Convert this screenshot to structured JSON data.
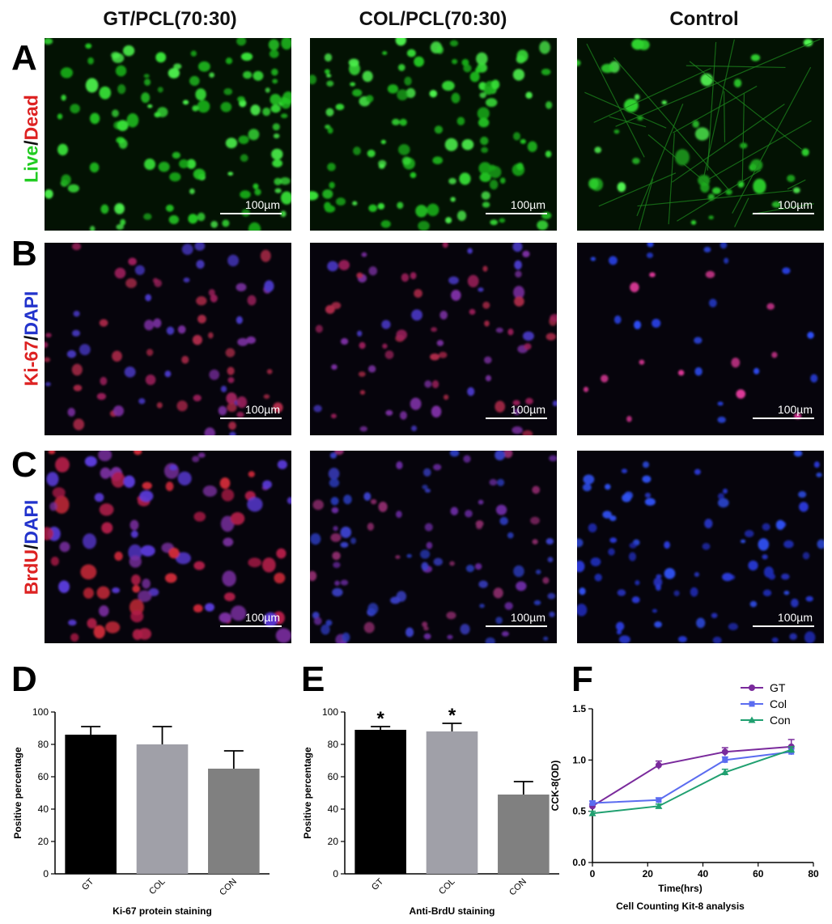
{
  "columns": [
    "GT/PCL(70:30)",
    "COL/PCL(70:30)",
    "Control"
  ],
  "panel_letters": {
    "A": "A",
    "B": "B",
    "C": "C",
    "D": "D",
    "E": "E",
    "F": "F"
  },
  "row_labels": {
    "A": [
      {
        "text": "Live",
        "color": "#22cc22"
      },
      {
        "text": "/",
        "color": "#111111"
      },
      {
        "text": "Dead",
        "color": "#dd2222"
      }
    ],
    "B": [
      {
        "text": "Ki-67",
        "color": "#dd2222"
      },
      {
        "text": "/",
        "color": "#111111"
      },
      {
        "text": "DAPI",
        "color": "#2233cc"
      }
    ],
    "C": [
      {
        "text": "BrdU",
        "color": "#dd2222"
      },
      {
        "text": "/",
        "color": "#111111"
      },
      {
        "text": "DAPI",
        "color": "#2233cc"
      }
    ]
  },
  "scale_bar": "100µm",
  "chart_data": [
    {
      "type": "bar",
      "panel": "D",
      "categories": [
        "GT",
        "COL",
        "CON"
      ],
      "values": [
        86,
        80,
        65
      ],
      "errors": [
        5,
        11,
        11
      ],
      "colors": [
        "#000000",
        "#a0a0a8",
        "#808080"
      ],
      "title": "Ki-67 protein staining",
      "xlabel": "Ki-67 protein staining",
      "ylabel": "Positive percentage",
      "ylim": [
        0,
        100
      ],
      "yticks": [
        0,
        20,
        40,
        60,
        80,
        100
      ],
      "significance": [
        "",
        "",
        ""
      ]
    },
    {
      "type": "bar",
      "panel": "E",
      "categories": [
        "GT",
        "COL",
        "CON"
      ],
      "values": [
        89,
        88,
        49
      ],
      "errors": [
        2,
        5,
        8
      ],
      "colors": [
        "#000000",
        "#a0a0a8",
        "#808080"
      ],
      "title": "Anti-BrdU staining",
      "xlabel": "Anti-BrdU staining",
      "ylabel": "Positive percentage",
      "ylim": [
        0,
        100
      ],
      "yticks": [
        0,
        20,
        40,
        60,
        80,
        100
      ],
      "significance": [
        "*",
        "*",
        ""
      ]
    },
    {
      "type": "line",
      "panel": "F",
      "x": [
        0,
        24,
        48,
        72
      ],
      "series": [
        {
          "name": "GT",
          "values": [
            0.55,
            0.95,
            1.08,
            1.13
          ],
          "errors": [
            0.02,
            0.04,
            0.04,
            0.07
          ],
          "color": "#7a2a9c",
          "marker": "circle"
        },
        {
          "name": "Col",
          "values": [
            0.58,
            0.61,
            1.0,
            1.08
          ],
          "errors": [
            0.02,
            0.02,
            0.03,
            0.03
          ],
          "color": "#5b6cf0",
          "marker": "square"
        },
        {
          "name": "Con",
          "values": [
            0.48,
            0.55,
            0.88,
            1.1
          ],
          "errors": [
            0.02,
            0.02,
            0.03,
            0.03
          ],
          "color": "#20a070",
          "marker": "triangle"
        }
      ],
      "title": "Cell Counting Kit-8 analysis",
      "xlabel": "Time(hrs)",
      "ylabel": "CCK-8(OD)",
      "xlim": [
        0,
        80
      ],
      "ylim": [
        0,
        1.5
      ],
      "xticks": [
        0,
        20,
        40,
        60,
        80
      ],
      "yticks": [
        "0.0",
        "0.5",
        "1.0",
        "1.5"
      ],
      "legend": "top-right"
    }
  ]
}
